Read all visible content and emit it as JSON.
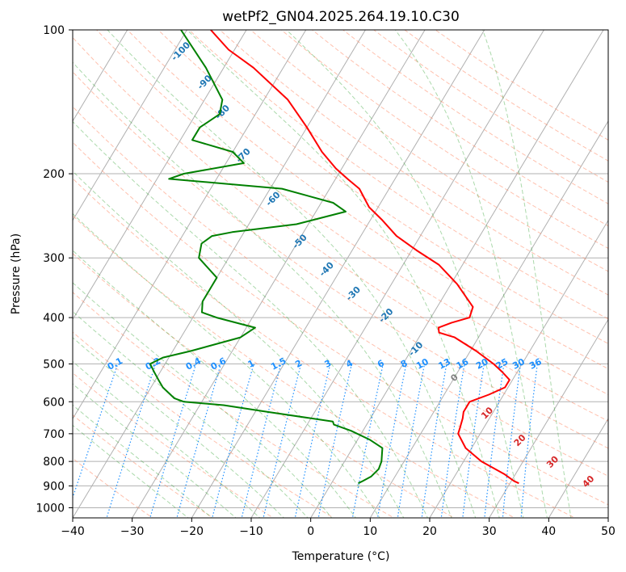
{
  "chart_data": {
    "type": "skew-t log-p",
    "title": "wetPf2_GN04.2025.264.19.10.C30",
    "xlabel": "Temperature (°C)",
    "ylabel": "Pressure (hPa)",
    "xlim": [
      -40,
      50
    ],
    "ylim": [
      1050,
      100
    ],
    "xticks": [
      -40,
      -30,
      -20,
      -10,
      0,
      10,
      20,
      30,
      40,
      50
    ],
    "yticks": [
      100,
      200,
      300,
      400,
      500,
      600,
      700,
      800,
      900,
      1000
    ],
    "series": [
      {
        "name": "temperature",
        "color": "#ff0000",
        "points": [
          [
            889,
            31.5
          ],
          [
            880,
            30.5
          ],
          [
            850,
            28.1
          ],
          [
            800,
            23.0
          ],
          [
            750,
            19.0
          ],
          [
            700,
            16.3
          ],
          [
            680,
            16.0
          ],
          [
            650,
            15.5
          ],
          [
            630,
            15.0
          ],
          [
            600,
            15.0
          ],
          [
            580,
            17.5
          ],
          [
            560,
            19.5
          ],
          [
            540,
            19.5
          ],
          [
            520,
            17.5
          ],
          [
            500,
            15.2
          ],
          [
            470,
            11.0
          ],
          [
            440,
            6.0
          ],
          [
            430,
            2.9
          ],
          [
            420,
            2.3
          ],
          [
            410,
            4.0
          ],
          [
            400,
            6.5
          ],
          [
            380,
            6.0
          ],
          [
            340,
            1.0
          ],
          [
            310,
            -4.0
          ],
          [
            290,
            -9.0
          ],
          [
            270,
            -14.0
          ],
          [
            250,
            -18.0
          ],
          [
            235,
            -21.5
          ],
          [
            215,
            -25.0
          ],
          [
            205,
            -28.0
          ],
          [
            195,
            -31.0
          ],
          [
            180,
            -35.0
          ],
          [
            160,
            -40.0
          ],
          [
            140,
            -46.0
          ],
          [
            120,
            -55.0
          ],
          [
            110,
            -61.0
          ],
          [
            100,
            -66.0
          ]
        ]
      },
      {
        "name": "dewpoint",
        "color": "#008000",
        "points": [
          [
            889,
            4.5
          ],
          [
            880,
            5.0
          ],
          [
            860,
            6.0
          ],
          [
            830,
            6.5
          ],
          [
            800,
            6.2
          ],
          [
            750,
            5.0
          ],
          [
            720,
            2.0
          ],
          [
            690,
            -2.0
          ],
          [
            670,
            -5.5
          ],
          [
            660,
            -6.0
          ],
          [
            630,
            -18.0
          ],
          [
            610,
            -26.0
          ],
          [
            600,
            -33.0
          ],
          [
            590,
            -35.0
          ],
          [
            560,
            -38.0
          ],
          [
            540,
            -39.5
          ],
          [
            520,
            -41.0
          ],
          [
            500,
            -42.5
          ],
          [
            485,
            -41.0
          ],
          [
            470,
            -37.0
          ],
          [
            440,
            -30.0
          ],
          [
            420,
            -28.5
          ],
          [
            400,
            -36.0
          ],
          [
            390,
            -39.0
          ],
          [
            370,
            -40.0
          ],
          [
            340,
            -40.0
          ],
          [
            330,
            -40.0
          ],
          [
            300,
            -45.0
          ],
          [
            280,
            -46.0
          ],
          [
            270,
            -45.0
          ],
          [
            265,
            -42.0
          ],
          [
            255,
            -32.0
          ],
          [
            240,
            -25.0
          ],
          [
            230,
            -28.0
          ],
          [
            215,
            -38.0
          ],
          [
            205,
            -58.0
          ],
          [
            200,
            -56.0
          ],
          [
            190,
            -47.0
          ],
          [
            180,
            -50.0
          ],
          [
            170,
            -58.0
          ],
          [
            160,
            -58.0
          ],
          [
            150,
            -56.0
          ],
          [
            140,
            -57.0
          ],
          [
            120,
            -63.0
          ],
          [
            100,
            -71.0
          ]
        ]
      }
    ],
    "mixing_ratio_labels": [
      "0.1",
      "0.2",
      "0.4",
      "0.6",
      "1",
      "1.5",
      "2",
      "3",
      "4",
      "6",
      "8",
      "10",
      "13",
      "16",
      "20",
      "25",
      "30",
      "36"
    ],
    "dry_adiabat_labels": [
      "0",
      "10",
      "20",
      "30",
      "40"
    ],
    "moist_adiabat_labels": [
      "-100",
      "-90",
      "-80",
      "-70",
      "-60",
      "-50",
      "-40",
      "-30",
      "-20",
      "-10"
    ]
  }
}
